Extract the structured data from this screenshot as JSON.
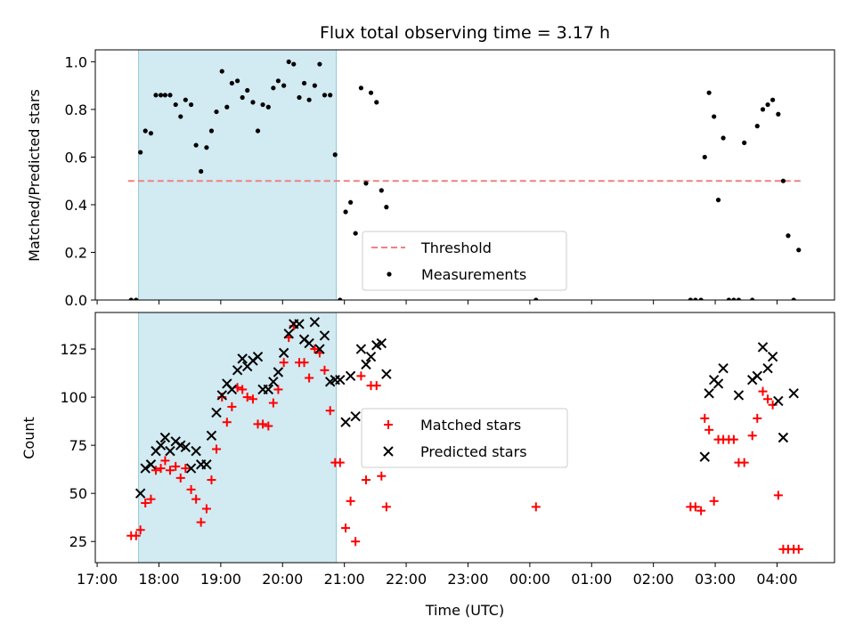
{
  "chart_data": {
    "title": "Flux total observing time = 3.17 h",
    "xlabel": "Time (UTC)",
    "x_ticks": [
      "17:00",
      "18:00",
      "19:00",
      "20:00",
      "21:00",
      "22:00",
      "23:00",
      "00:00",
      "01:00",
      "02:00",
      "03:00",
      "04:00"
    ],
    "x_range_hours": [
      16.97,
      28.93
    ],
    "shaded_span_hours": [
      17.67,
      20.87
    ],
    "shaded_color": "#add8e6",
    "panels": [
      {
        "type": "scatter",
        "ylabel": "Matched/Predicted stars",
        "ylim": [
          0,
          1.05
        ],
        "yticks": [
          "0.0",
          "0.2",
          "0.4",
          "0.6",
          "0.8",
          "1.0"
        ],
        "threshold": {
          "name": "Threshold",
          "value": 0.5,
          "x_range_hours": [
            17.5,
            28.4
          ],
          "color": "#f08080"
        },
        "series": [
          {
            "name": "Measurements",
            "color": "#000000",
            "marker": "dot",
            "points": [
              [
                17.55,
                0
              ],
              [
                17.63,
                0
              ],
              [
                17.7,
                0.62
              ],
              [
                17.78,
                0.71
              ],
              [
                17.87,
                0.7
              ],
              [
                17.95,
                0.86
              ],
              [
                18.03,
                0.86
              ],
              [
                18.1,
                0.86
              ],
              [
                18.18,
                0.86
              ],
              [
                18.27,
                0.82
              ],
              [
                18.35,
                0.77
              ],
              [
                18.43,
                0.84
              ],
              [
                18.52,
                0.82
              ],
              [
                18.6,
                0.65
              ],
              [
                18.68,
                0.54
              ],
              [
                18.77,
                0.64
              ],
              [
                18.85,
                0.71
              ],
              [
                18.93,
                0.79
              ],
              [
                19.02,
                0.96
              ],
              [
                19.1,
                0.81
              ],
              [
                19.18,
                0.91
              ],
              [
                19.27,
                0.92
              ],
              [
                19.35,
                0.85
              ],
              [
                19.43,
                0.88
              ],
              [
                19.52,
                0.83
              ],
              [
                19.6,
                0.71
              ],
              [
                19.68,
                0.82
              ],
              [
                19.77,
                0.81
              ],
              [
                19.85,
                0.89
              ],
              [
                19.93,
                0.92
              ],
              [
                20.02,
                0.9
              ],
              [
                20.1,
                1.0
              ],
              [
                20.18,
                0.99
              ],
              [
                20.27,
                0.85
              ],
              [
                20.35,
                0.91
              ],
              [
                20.43,
                0.84
              ],
              [
                20.52,
                0.9
              ],
              [
                20.6,
                0.99
              ],
              [
                20.68,
                0.86
              ],
              [
                20.77,
                0.86
              ],
              [
                20.85,
                0.61
              ],
              [
                20.93,
                0
              ],
              [
                21.02,
                0.37
              ],
              [
                21.1,
                0.41
              ],
              [
                21.18,
                0.28
              ],
              [
                21.27,
                0.89
              ],
              [
                21.35,
                0.49
              ],
              [
                21.43,
                0.87
              ],
              [
                21.52,
                0.83
              ],
              [
                21.6,
                0.46
              ],
              [
                21.68,
                0.39
              ],
              [
                24.1,
                0
              ],
              [
                26.6,
                0
              ],
              [
                26.68,
                0
              ],
              [
                26.77,
                0
              ],
              [
                26.83,
                0.6
              ],
              [
                26.9,
                0.87
              ],
              [
                26.98,
                0.77
              ],
              [
                27.05,
                0.42
              ],
              [
                27.13,
                0.68
              ],
              [
                27.22,
                0
              ],
              [
                27.3,
                0
              ],
              [
                27.38,
                0
              ],
              [
                27.47,
                0.66
              ],
              [
                27.6,
                0
              ],
              [
                27.68,
                0.73
              ],
              [
                27.77,
                0.8
              ],
              [
                27.85,
                0.82
              ],
              [
                27.93,
                0.84
              ],
              [
                28.02,
                0.78
              ],
              [
                28.1,
                0.5
              ],
              [
                28.18,
                0.27
              ],
              [
                28.27,
                0
              ],
              [
                28.35,
                0.21
              ]
            ]
          }
        ],
        "legend": [
          "Threshold",
          "Measurements"
        ]
      },
      {
        "type": "scatter",
        "ylabel": "Count",
        "ylim": [
          14,
          144
        ],
        "yticks": [
          "25",
          "50",
          "75",
          "100",
          "125"
        ],
        "series": [
          {
            "name": "Matched stars",
            "color": "#ff0000",
            "marker": "plus",
            "points": [
              [
                17.55,
                28
              ],
              [
                17.63,
                28
              ],
              [
                17.7,
                31
              ],
              [
                17.78,
                45
              ],
              [
                17.87,
                47
              ],
              [
                17.95,
                62
              ],
              [
                18.03,
                63
              ],
              [
                18.1,
                67
              ],
              [
                18.18,
                62
              ],
              [
                18.27,
                64
              ],
              [
                18.35,
                58
              ],
              [
                18.43,
                63
              ],
              [
                18.52,
                52
              ],
              [
                18.6,
                47
              ],
              [
                18.68,
                35
              ],
              [
                18.77,
                42
              ],
              [
                18.85,
                57
              ],
              [
                18.93,
                73
              ],
              [
                19.02,
                100
              ],
              [
                19.1,
                87
              ],
              [
                19.18,
                95
              ],
              [
                19.27,
                105
              ],
              [
                19.35,
                104
              ],
              [
                19.43,
                100
              ],
              [
                19.52,
                99
              ],
              [
                19.6,
                86
              ],
              [
                19.68,
                86
              ],
              [
                19.77,
                85
              ],
              [
                19.85,
                97
              ],
              [
                19.93,
                104
              ],
              [
                20.02,
                118
              ],
              [
                20.1,
                131
              ],
              [
                20.18,
                137
              ],
              [
                20.27,
                118
              ],
              [
                20.35,
                118
              ],
              [
                20.43,
                110
              ],
              [
                20.52,
                125
              ],
              [
                20.6,
                123
              ],
              [
                20.68,
                114
              ],
              [
                20.77,
                93
              ],
              [
                20.85,
                66
              ],
              [
                20.93,
                66
              ],
              [
                21.02,
                32
              ],
              [
                21.1,
                46
              ],
              [
                21.18,
                25
              ],
              [
                21.27,
                111
              ],
              [
                21.35,
                57
              ],
              [
                21.43,
                106
              ],
              [
                21.52,
                106
              ],
              [
                21.6,
                59
              ],
              [
                21.68,
                43
              ],
              [
                24.1,
                43
              ],
              [
                26.6,
                43
              ],
              [
                26.68,
                43
              ],
              [
                26.77,
                41
              ],
              [
                26.83,
                89
              ],
              [
                26.9,
                83
              ],
              [
                26.98,
                46
              ],
              [
                27.05,
                78
              ],
              [
                27.13,
                78
              ],
              [
                27.22,
                78
              ],
              [
                27.3,
                78
              ],
              [
                27.38,
                66
              ],
              [
                27.47,
                66
              ],
              [
                27.6,
                80
              ],
              [
                27.68,
                89
              ],
              [
                27.77,
                103
              ],
              [
                27.85,
                99
              ],
              [
                27.93,
                96
              ],
              [
                28.02,
                49
              ],
              [
                28.1,
                21
              ],
              [
                28.18,
                21
              ],
              [
                28.27,
                21
              ],
              [
                28.35,
                21
              ]
            ]
          },
          {
            "name": "Predicted stars",
            "color": "#000000",
            "marker": "x",
            "points": [
              [
                17.7,
                50
              ],
              [
                17.78,
                63
              ],
              [
                17.87,
                65
              ],
              [
                17.95,
                72
              ],
              [
                18.03,
                75
              ],
              [
                18.1,
                79
              ],
              [
                18.18,
                72
              ],
              [
                18.27,
                77
              ],
              [
                18.35,
                75
              ],
              [
                18.43,
                74
              ],
              [
                18.52,
                63
              ],
              [
                18.6,
                72
              ],
              [
                18.68,
                65
              ],
              [
                18.77,
                65
              ],
              [
                18.85,
                80
              ],
              [
                18.93,
                92
              ],
              [
                19.02,
                101
              ],
              [
                19.1,
                107
              ],
              [
                19.18,
                104
              ],
              [
                19.27,
                114
              ],
              [
                19.35,
                120
              ],
              [
                19.43,
                116
              ],
              [
                19.52,
                119
              ],
              [
                19.6,
                121
              ],
              [
                19.68,
                104
              ],
              [
                19.77,
                104
              ],
              [
                19.85,
                108
              ],
              [
                19.93,
                113
              ],
              [
                20.02,
                123
              ],
              [
                20.1,
                133
              ],
              [
                20.18,
                138
              ],
              [
                20.27,
                138
              ],
              [
                20.35,
                130
              ],
              [
                20.43,
                128
              ],
              [
                20.52,
                139
              ],
              [
                20.6,
                125
              ],
              [
                20.68,
                132
              ],
              [
                20.77,
                108
              ],
              [
                20.85,
                109
              ],
              [
                20.93,
                109
              ],
              [
                21.02,
                87
              ],
              [
                21.1,
                111
              ],
              [
                21.18,
                90
              ],
              [
                21.27,
                125
              ],
              [
                21.35,
                117
              ],
              [
                21.43,
                121
              ],
              [
                21.52,
                127
              ],
              [
                21.6,
                128
              ],
              [
                21.68,
                112
              ],
              [
                26.83,
                69
              ],
              [
                26.9,
                102
              ],
              [
                26.98,
                109
              ],
              [
                27.05,
                107
              ],
              [
                27.13,
                115
              ],
              [
                27.38,
                101
              ],
              [
                27.6,
                109
              ],
              [
                27.68,
                111
              ],
              [
                27.77,
                126
              ],
              [
                27.85,
                115
              ],
              [
                27.93,
                121
              ],
              [
                28.02,
                98
              ],
              [
                28.1,
                79
              ],
              [
                28.27,
                102
              ]
            ]
          }
        ],
        "legend": [
          "Matched stars",
          "Predicted stars"
        ]
      }
    ]
  }
}
